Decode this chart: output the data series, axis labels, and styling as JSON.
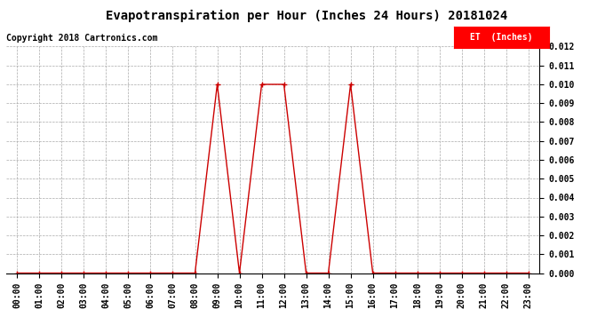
{
  "title": "Evapotranspiration per Hour (Inches 24 Hours) 20181024",
  "copyright": "Copyright 2018 Cartronics.com",
  "legend_label": "ET  (Inches)",
  "legend_bg": "#ff0000",
  "legend_text_color": "#ffffff",
  "line_color": "#cc0000",
  "marker": "+",
  "marker_size": 4,
  "marker_linewidth": 1.0,
  "line_width": 1.0,
  "background_color": "#ffffff",
  "grid_color": "#aaaaaa",
  "grid_linestyle": "--",
  "grid_linewidth": 0.5,
  "ylim": [
    0.0,
    0.012
  ],
  "yticks": [
    0.0,
    0.001,
    0.002,
    0.003,
    0.004,
    0.005,
    0.006,
    0.007,
    0.008,
    0.009,
    0.01,
    0.011,
    0.012
  ],
  "hours": [
    "00:00",
    "01:00",
    "02:00",
    "03:00",
    "04:00",
    "05:00",
    "06:00",
    "07:00",
    "08:00",
    "09:00",
    "10:00",
    "11:00",
    "12:00",
    "13:00",
    "14:00",
    "15:00",
    "16:00",
    "17:00",
    "18:00",
    "19:00",
    "20:00",
    "21:00",
    "22:00",
    "23:00"
  ],
  "values": [
    0.0,
    0.0,
    0.0,
    0.0,
    0.0,
    0.0,
    0.0,
    0.0,
    0.0,
    0.01,
    0.0,
    0.01,
    0.01,
    0.0,
    0.0,
    0.01,
    0.0,
    0.0,
    0.0,
    0.0,
    0.0,
    0.0,
    0.0,
    0.0
  ],
  "title_fontsize": 10,
  "tick_fontsize": 7,
  "copyright_fontsize": 7,
  "legend_fontsize": 7
}
